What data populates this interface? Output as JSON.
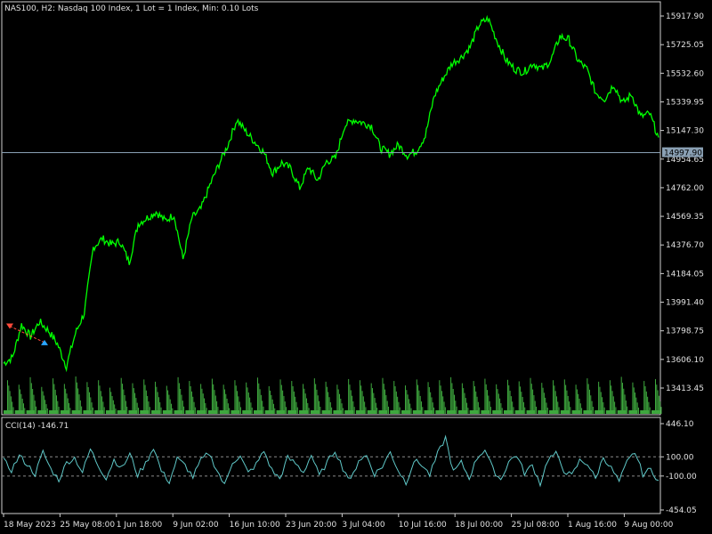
{
  "header": {
    "symbol_info": "NAS100, H2:  Nasdaq 100 Index, 1 Lot = 1 Index, Min: 0.10 Lots"
  },
  "indicator": {
    "title": "CCI(14) -146.71"
  },
  "colors": {
    "background": "#000000",
    "price_line": "#00ff00",
    "volume": "#3ea83e",
    "cci_line": "#5fc8c8",
    "current_price_line": "#8aa0b4",
    "axis_text": "#e0e0e0",
    "buy_marker": "#2aa6ff",
    "sell_marker": "#ff4a3a"
  },
  "chart_data": [
    {
      "type": "line",
      "series": [
        {
          "values": [
            13580,
            13620,
            13840,
            13760,
            13860,
            13800,
            13710,
            13560,
            13780,
            13920,
            14360,
            14420,
            14380,
            14400,
            14260,
            14520,
            14560,
            14600,
            14540,
            14580,
            14280,
            14560,
            14620,
            14780,
            14920,
            15050,
            15220,
            15140,
            15070,
            15000,
            14860,
            14930,
            14890,
            14760,
            14900,
            14810,
            14940,
            14960,
            15180,
            15220,
            15200,
            15180,
            15030,
            14990,
            15050,
            14980,
            15010,
            15110,
            15380,
            15500,
            15600,
            15640,
            15710,
            15860,
            15900,
            15750,
            15620,
            15560,
            15540,
            15600,
            15560,
            15620,
            15780,
            15760,
            15620,
            15560,
            15400,
            15360,
            15460,
            15330,
            15390,
            15240,
            15260,
            15100
          ]
        }
      ],
      "x_tick_labels": [
        "18 May 2023",
        "25 May 08:00",
        "1 Jun 18:00",
        "9 Jun 02:00",
        "16 Jun 10:00",
        "23 Jun 20:00",
        "3 Jul 04:00",
        "10 Jul 16:00",
        "18 Jul 00:00",
        "25 Jul 08:00",
        "1 Aug 16:00",
        "9 Aug 00:00"
      ],
      "y_tick_labels": [
        "15917.90",
        "15725.05",
        "15532.60",
        "15339.95",
        "15147.30",
        "14954.65",
        "14762.00",
        "14569.35",
        "14376.70",
        "14184.05",
        "13991.40",
        "13798.75",
        "13606.10",
        "13413.45"
      ],
      "ylim": [
        13350,
        15990
      ],
      "current_price": 14997.9,
      "current_price_label": "14997.90",
      "volume": [
        0.9,
        0.78,
        0.98,
        0.72,
        0.95,
        0.8,
        1.0,
        0.85,
        0.9,
        0.7,
        0.96,
        0.82,
        0.92,
        0.86,
        0.75,
        0.98,
        0.88,
        0.8,
        0.94,
        0.78,
        0.9,
        0.84,
        0.97,
        0.74,
        0.92,
        0.88,
        0.8,
        0.95,
        0.86,
        0.78,
        0.93,
        0.9,
        0.82,
        0.96,
        0.88,
        0.76,
        0.92,
        0.85,
        0.9,
        0.98,
        0.82,
        0.88,
        0.94,
        0.79,
        0.91,
        0.87,
        0.96,
        0.83,
        0.9,
        0.92,
        0.78,
        0.95,
        0.86,
        0.9,
        0.99,
        0.84,
        0.88,
        0.93
      ]
    },
    {
      "type": "line",
      "title": "CCI(14) -146.71",
      "y_tick_labels": [
        "446.10",
        "100.00",
        "-100.00",
        "-454.05"
      ],
      "levels": [
        100,
        -100
      ],
      "ylim": [
        -454.05,
        446.1
      ],
      "last_value": -146.71,
      "values": [
        60,
        -40,
        110,
        20,
        -80,
        150,
        -30,
        -140,
        40,
        90,
        -60,
        180,
        10,
        -120,
        70,
        -20,
        130,
        -90,
        30,
        200,
        -50,
        -160,
        80,
        10,
        -110,
        60,
        140,
        -30,
        -200,
        50,
        100,
        -70,
        20,
        160,
        -40,
        -130,
        90,
        30,
        -60,
        120,
        -100,
        40,
        170,
        -20,
        -150,
        70,
        110,
        -80,
        0,
        150,
        -40,
        -170,
        60,
        20,
        -90,
        130,
        300,
        -60,
        40,
        -120,
        90,
        180,
        -30,
        -140,
        50,
        120,
        -70,
        10,
        -180,
        80,
        130,
        -40,
        -100,
        60,
        30,
        -130,
        100,
        -20,
        -160,
        40,
        150,
        -80,
        -30,
        -146.71
      ]
    }
  ]
}
